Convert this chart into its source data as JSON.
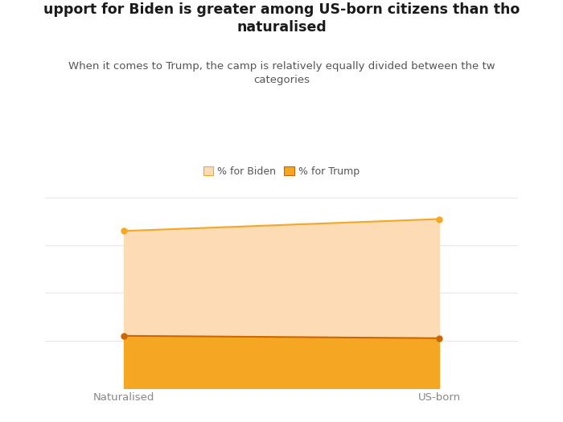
{
  "title": "upport for Biden is greater among US-born citizens than tho\nnaturalised",
  "subtitle": "When it comes to Trump, the camp is relatively equally divided between the tw\ncategories",
  "categories": [
    "Naturalised",
    "US-born"
  ],
  "biden_values": [
    66,
    71
  ],
  "trump_values": [
    22,
    21
  ],
  "biden_color_fill": "#FDDCB5",
  "trump_color_fill": "#F5A623",
  "biden_color_line": "#F5A623",
  "trump_color_line": "#CC6600",
  "biden_label": "% for Biden",
  "trump_label": "% for Trump",
  "legend_marker_biden": "#FDDCB5",
  "legend_marker_trump": "#F5A623",
  "title_color": "#1a1a1a",
  "subtitle_color": "#555555",
  "background_color": "#FFFFFF",
  "ylim": [
    0,
    85
  ],
  "x_positions": [
    0,
    1
  ],
  "grid_color": "#E8E8E8",
  "label_color": "#FFFFFF",
  "tick_color": "#888888"
}
